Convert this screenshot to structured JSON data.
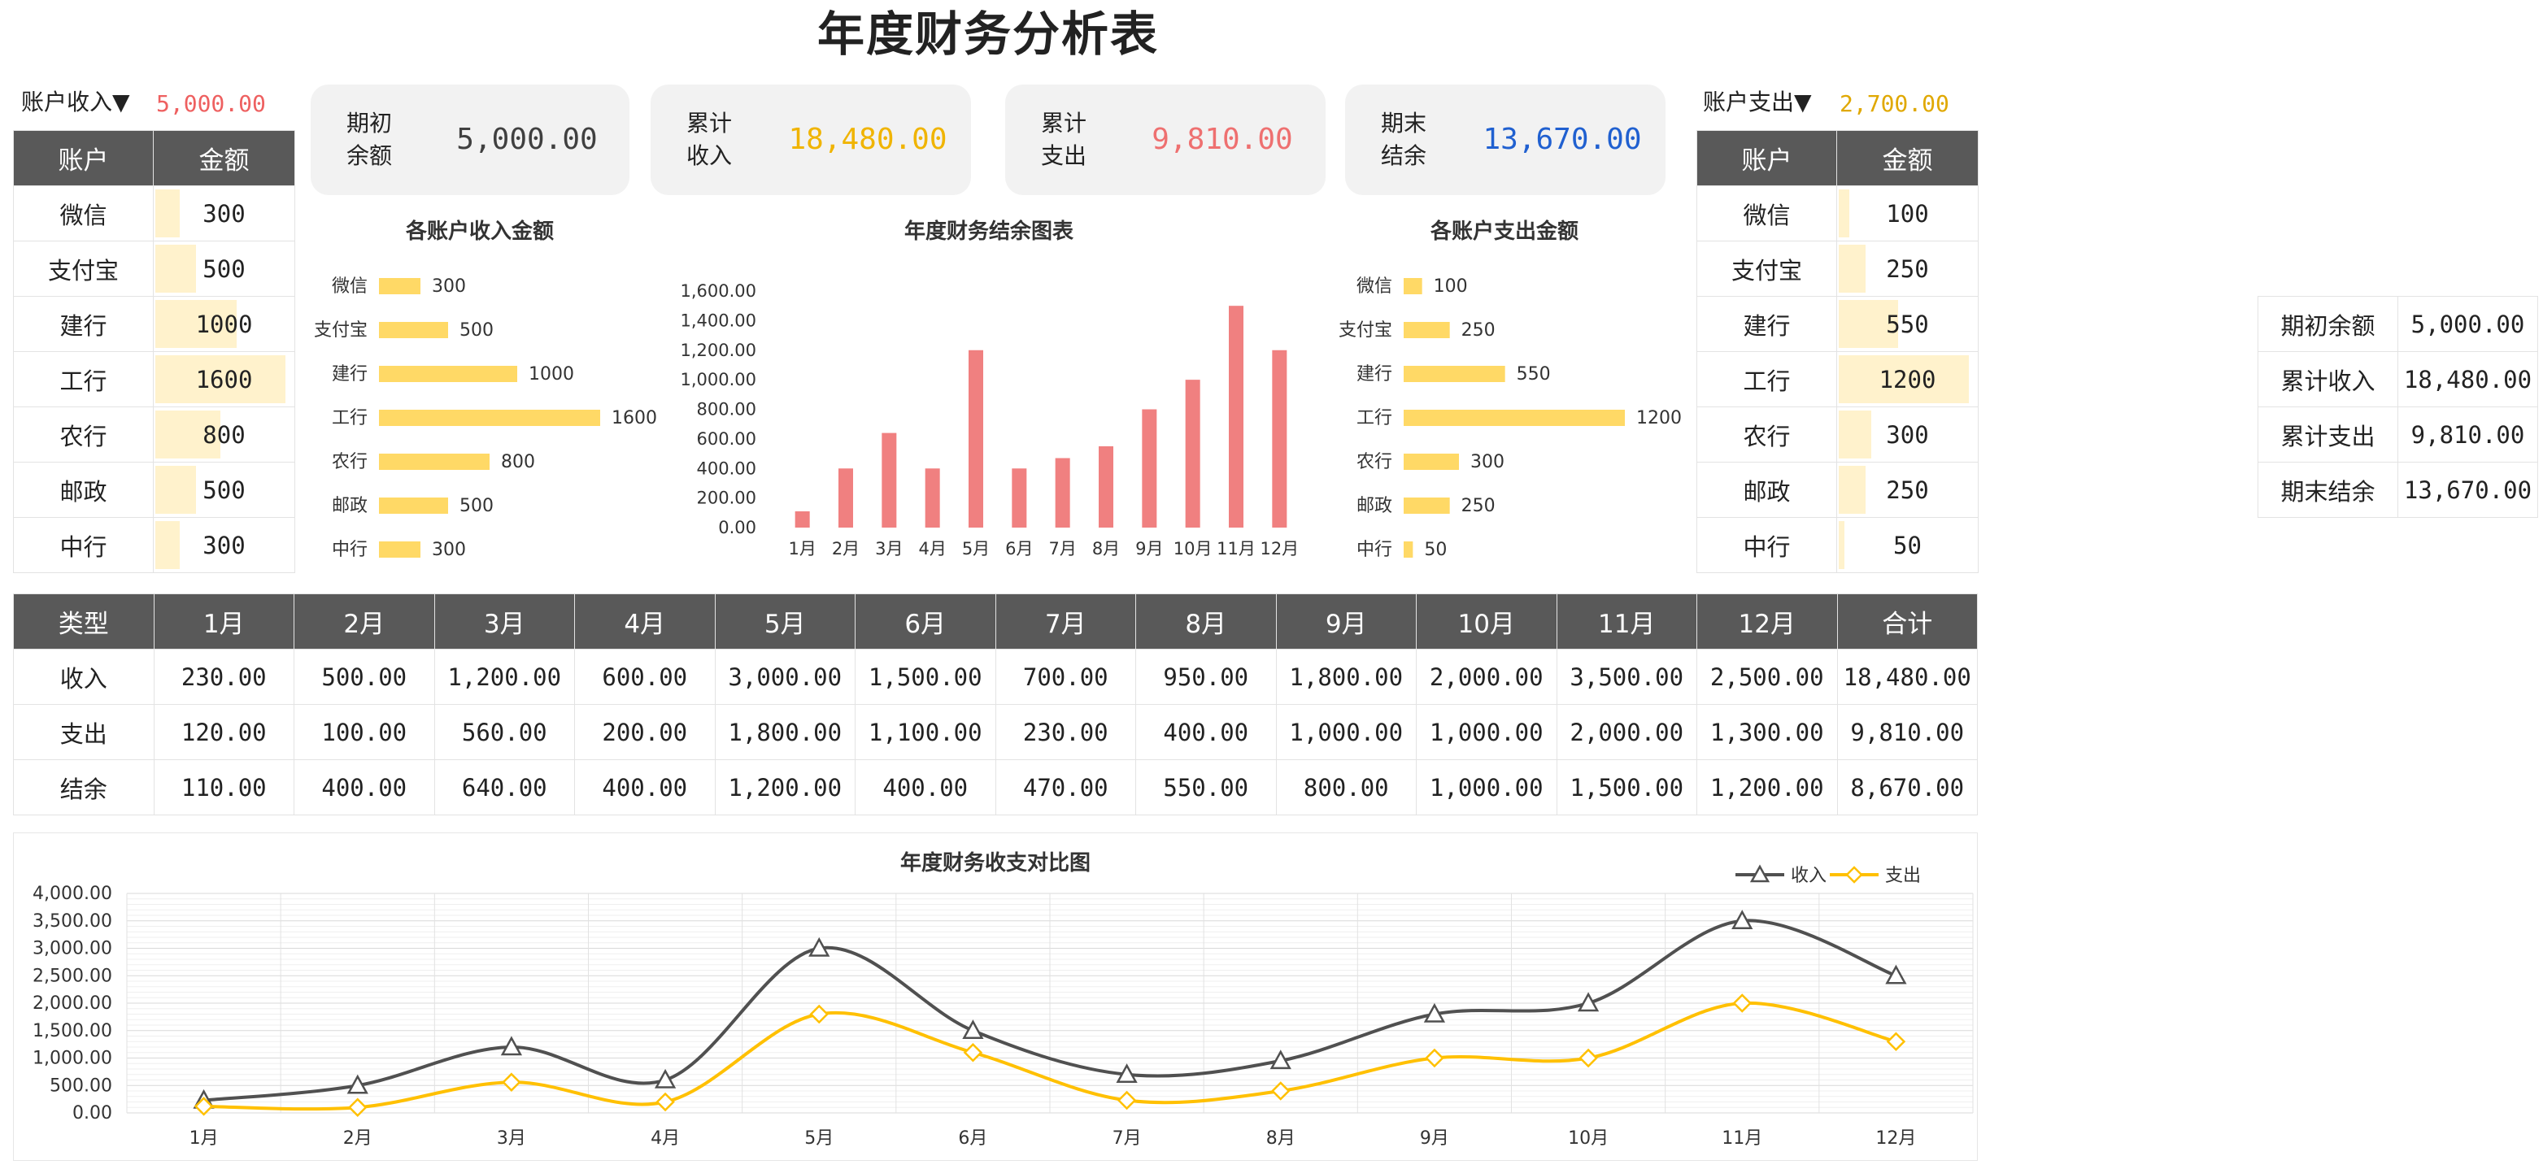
{
  "title": "年度财务分析表",
  "income_selector": {
    "label": "账户收入▼",
    "value": "5,000.00"
  },
  "expense_selector": {
    "label": "账户支出▼",
    "value": "2,700.00"
  },
  "account_header": {
    "account": "账户",
    "amount": "金额"
  },
  "income_accounts": [
    {
      "name": "微信",
      "amount": "300"
    },
    {
      "name": "支付宝",
      "amount": "500"
    },
    {
      "name": "建行",
      "amount": "1000"
    },
    {
      "name": "工行",
      "amount": "1600"
    },
    {
      "name": "农行",
      "amount": "800"
    },
    {
      "name": "邮政",
      "amount": "500"
    },
    {
      "name": "中行",
      "amount": "300"
    }
  ],
  "expense_accounts": [
    {
      "name": "微信",
      "amount": "100"
    },
    {
      "name": "支付宝",
      "amount": "250"
    },
    {
      "name": "建行",
      "amount": "550"
    },
    {
      "name": "工行",
      "amount": "1200"
    },
    {
      "name": "农行",
      "amount": "300"
    },
    {
      "name": "邮政",
      "amount": "250"
    },
    {
      "name": "中行",
      "amount": "50"
    }
  ],
  "cards": [
    {
      "label": "期初余额",
      "value": "5,000.00",
      "color": "#404040"
    },
    {
      "label": "累计收入",
      "value": "18,480.00",
      "color": "#f0b400"
    },
    {
      "label": "累计支出",
      "value": "9,810.00",
      "color": "#ee7070"
    },
    {
      "label": "期末结余",
      "value": "13,670.00",
      "color": "#2060d0"
    }
  ],
  "summary": [
    {
      "label": "期初余额",
      "value": "5,000.00"
    },
    {
      "label": "累计收入",
      "value": "18,480.00"
    },
    {
      "label": "累计支出",
      "value": "9,810.00"
    },
    {
      "label": "期末结余",
      "value": "13,670.00"
    }
  ],
  "monthly_table": {
    "headers": [
      "类型",
      "1月",
      "2月",
      "3月",
      "4月",
      "5月",
      "6月",
      "7月",
      "8月",
      "9月",
      "10月",
      "11月",
      "12月",
      "合计"
    ],
    "rows": [
      [
        "收入",
        "230.00",
        "500.00",
        "1,200.00",
        "600.00",
        "3,000.00",
        "1,500.00",
        "700.00",
        "950.00",
        "1,800.00",
        "2,000.00",
        "3,500.00",
        "2,500.00",
        "18,480.00"
      ],
      [
        "支出",
        "120.00",
        "100.00",
        "560.00",
        "200.00",
        "1,800.00",
        "1,100.00",
        "230.00",
        "400.00",
        "1,000.00",
        "1,000.00",
        "2,000.00",
        "1,300.00",
        "9,810.00"
      ],
      [
        "结余",
        "110.00",
        "400.00",
        "640.00",
        "400.00",
        "1,200.00",
        "400.00",
        "470.00",
        "550.00",
        "800.00",
        "1,000.00",
        "1,500.00",
        "1,200.00",
        "8,670.00"
      ]
    ]
  },
  "colors": {
    "header_bg": "#595959",
    "bar_yellow": "#ffd966",
    "bar_light": "#fff2cc",
    "bar_red": "#f08080",
    "line_income": "#505050",
    "line_expense": "#ffc000"
  },
  "chart_data": [
    {
      "type": "bar",
      "orientation": "horizontal",
      "title": "各账户收入金额",
      "categories": [
        "微信",
        "支付宝",
        "建行",
        "工行",
        "农行",
        "邮政",
        "中行"
      ],
      "values": [
        300,
        500,
        1000,
        1600,
        800,
        500,
        300
      ]
    },
    {
      "type": "bar",
      "title": "年度财务结余图表",
      "categories": [
        "1月",
        "2月",
        "3月",
        "4月",
        "5月",
        "6月",
        "7月",
        "8月",
        "9月",
        "10月",
        "11月",
        "12月"
      ],
      "values": [
        110,
        400,
        640,
        400,
        1200,
        400,
        470,
        550,
        800,
        1000,
        1500,
        1200
      ],
      "ylim": [
        0,
        1600
      ],
      "yticks": [
        "0.00",
        "200.00",
        "400.00",
        "600.00",
        "800.00",
        "1,000.00",
        "1,200.00",
        "1,400.00",
        "1,600.00"
      ]
    },
    {
      "type": "bar",
      "orientation": "horizontal",
      "title": "各账户支出金额",
      "categories": [
        "微信",
        "支付宝",
        "建行",
        "工行",
        "农行",
        "邮政",
        "中行"
      ],
      "values": [
        100,
        250,
        550,
        1200,
        300,
        250,
        50
      ]
    },
    {
      "type": "line",
      "title": "年度财务收支对比图",
      "categories": [
        "1月",
        "2月",
        "3月",
        "4月",
        "5月",
        "6月",
        "7月",
        "8月",
        "9月",
        "10月",
        "11月",
        "12月"
      ],
      "series": [
        {
          "name": "收入",
          "values": [
            230,
            500,
            1200,
            600,
            3000,
            1500,
            700,
            950,
            1800,
            2000,
            3500,
            2500
          ]
        },
        {
          "name": "支出",
          "values": [
            120,
            100,
            560,
            200,
            1800,
            1100,
            230,
            400,
            1000,
            1000,
            2000,
            1300
          ]
        }
      ],
      "ylim": [
        0,
        4000
      ],
      "yticks": [
        "0.00",
        "500.00",
        "1,000.00",
        "1,500.00",
        "2,000.00",
        "2,500.00",
        "3,000.00",
        "3,500.00",
        "4,000.00"
      ],
      "legend": "top-right",
      "grid": true
    }
  ]
}
